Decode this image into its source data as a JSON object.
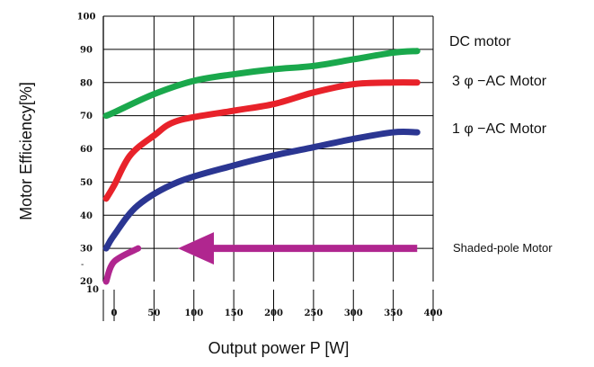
{
  "chart_data": {
    "type": "line",
    "title": "",
    "xlabel": "Output  power  P [W]",
    "ylabel": "Motor Efficiency[%]",
    "xlim": [
      -10,
      400
    ],
    "ylim": [
      10,
      100
    ],
    "x_ticks": [
      "0",
      "50",
      "100",
      "150",
      "200",
      "250",
      "300",
      "350",
      "400"
    ],
    "y_ticks": [
      "20",
      "30",
      "40",
      "50",
      "60",
      "70",
      "80",
      "90",
      "100"
    ],
    "y_bottom_tick": "10",
    "grid": true,
    "series": [
      {
        "name": "DC  motor",
        "color": "#1aa84c",
        "points": [
          [
            -10,
            70
          ],
          [
            0,
            71
          ],
          [
            50,
            76.5
          ],
          [
            100,
            80.5
          ],
          [
            150,
            82.5
          ],
          [
            200,
            84
          ],
          [
            250,
            85
          ],
          [
            300,
            87
          ],
          [
            350,
            89
          ],
          [
            380,
            89.5
          ]
        ]
      },
      {
        "name": "3 φ  −AC Motor",
        "color": "#e8222a",
        "points": [
          [
            -10,
            45
          ],
          [
            0,
            49
          ],
          [
            20,
            58
          ],
          [
            50,
            64
          ],
          [
            80,
            68.5
          ],
          [
            150,
            71.5
          ],
          [
            200,
            73.5
          ],
          [
            250,
            77
          ],
          [
            300,
            79.5
          ],
          [
            350,
            80
          ],
          [
            380,
            80
          ]
        ]
      },
      {
        "name": "1 φ  −AC Motor",
        "color": "#2b3692",
        "points": [
          [
            -10,
            30
          ],
          [
            0,
            34
          ],
          [
            30,
            43
          ],
          [
            80,
            50
          ],
          [
            150,
            55
          ],
          [
            200,
            58
          ],
          [
            250,
            60.5
          ],
          [
            300,
            63
          ],
          [
            350,
            65
          ],
          [
            380,
            65
          ]
        ]
      },
      {
        "name": "Shaded-pole Motor",
        "color": "#b0268f",
        "points": [
          [
            -10,
            20
          ],
          [
            0,
            26
          ],
          [
            30,
            30
          ]
        ]
      }
    ],
    "annotations": [
      {
        "type": "arrow",
        "from": [
          380,
          30
        ],
        "to": [
          80,
          30
        ],
        "color": "#b0268f"
      }
    ]
  }
}
